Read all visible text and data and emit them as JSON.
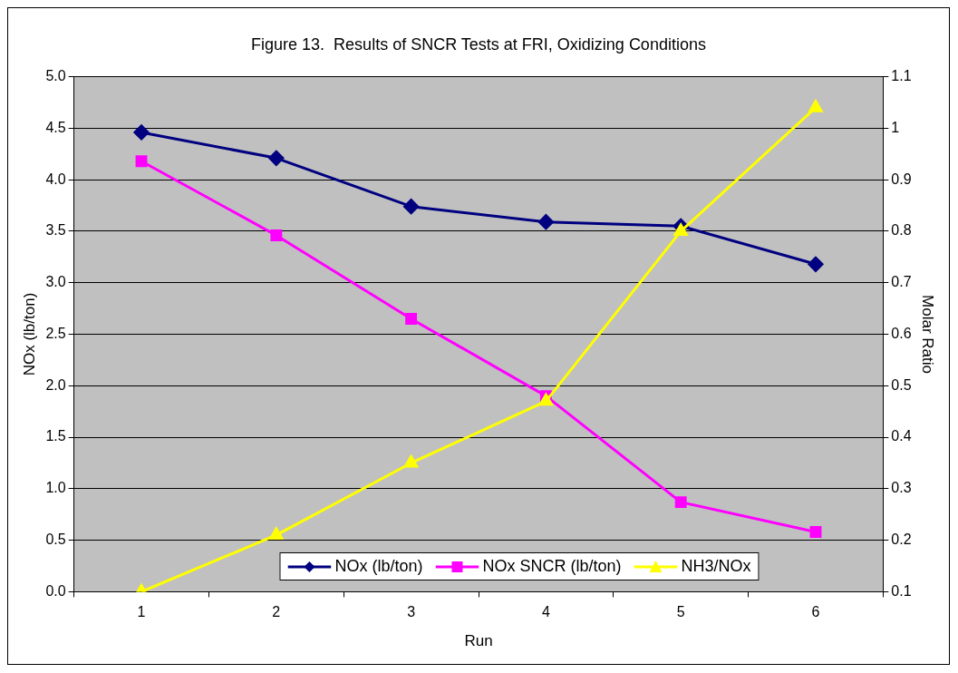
{
  "chart_data": {
    "type": "line",
    "title": "Figure 13.  Results of SNCR Tests at FRI, Oxidizing Conditions",
    "xlabel": "Run",
    "ylabel": "NOx (lb/ton)",
    "y2label": "Molar Ratio",
    "categories": [
      "1",
      "2",
      "3",
      "4",
      "5",
      "6"
    ],
    "series": [
      {
        "name": "NOx (lb/ton)",
        "color": "#000080",
        "marker": "diamond",
        "values": [
          4.46,
          4.21,
          3.74,
          3.59,
          3.55,
          3.18
        ]
      },
      {
        "name": "NOx SNCR (lb/ton)",
        "color": "#ff00ff",
        "marker": "square",
        "values": [
          4.18,
          3.46,
          2.65,
          1.9,
          0.87,
          0.58
        ]
      },
      {
        "name": "NH3/NOx",
        "color": "#ffff00",
        "marker": "triangle",
        "axis": "y2",
        "values": [
          0.1,
          0.21,
          0.35,
          0.47,
          0.8,
          1.04
        ]
      }
    ],
    "ylim": [
      0,
      5
    ],
    "yticks": [
      {
        "value": 0,
        "label": "0.0"
      },
      0.5,
      {
        "value": 1,
        "label": "1.0"
      },
      1.5,
      {
        "value": 2,
        "label": "2.0"
      },
      2.5,
      {
        "value": 3,
        "label": "3.0"
      },
      3.5,
      {
        "value": 4,
        "label": "4.0"
      },
      4.5,
      {
        "value": 5,
        "label": "5.0"
      }
    ],
    "y2lim": [
      0.1,
      1.1
    ],
    "y2ticks": [
      0.1,
      0.2,
      0.3,
      0.4,
      0.5,
      0.6,
      0.7,
      0.8,
      0.9,
      1,
      1.1
    ],
    "grid": "y",
    "legend": "bottom"
  }
}
